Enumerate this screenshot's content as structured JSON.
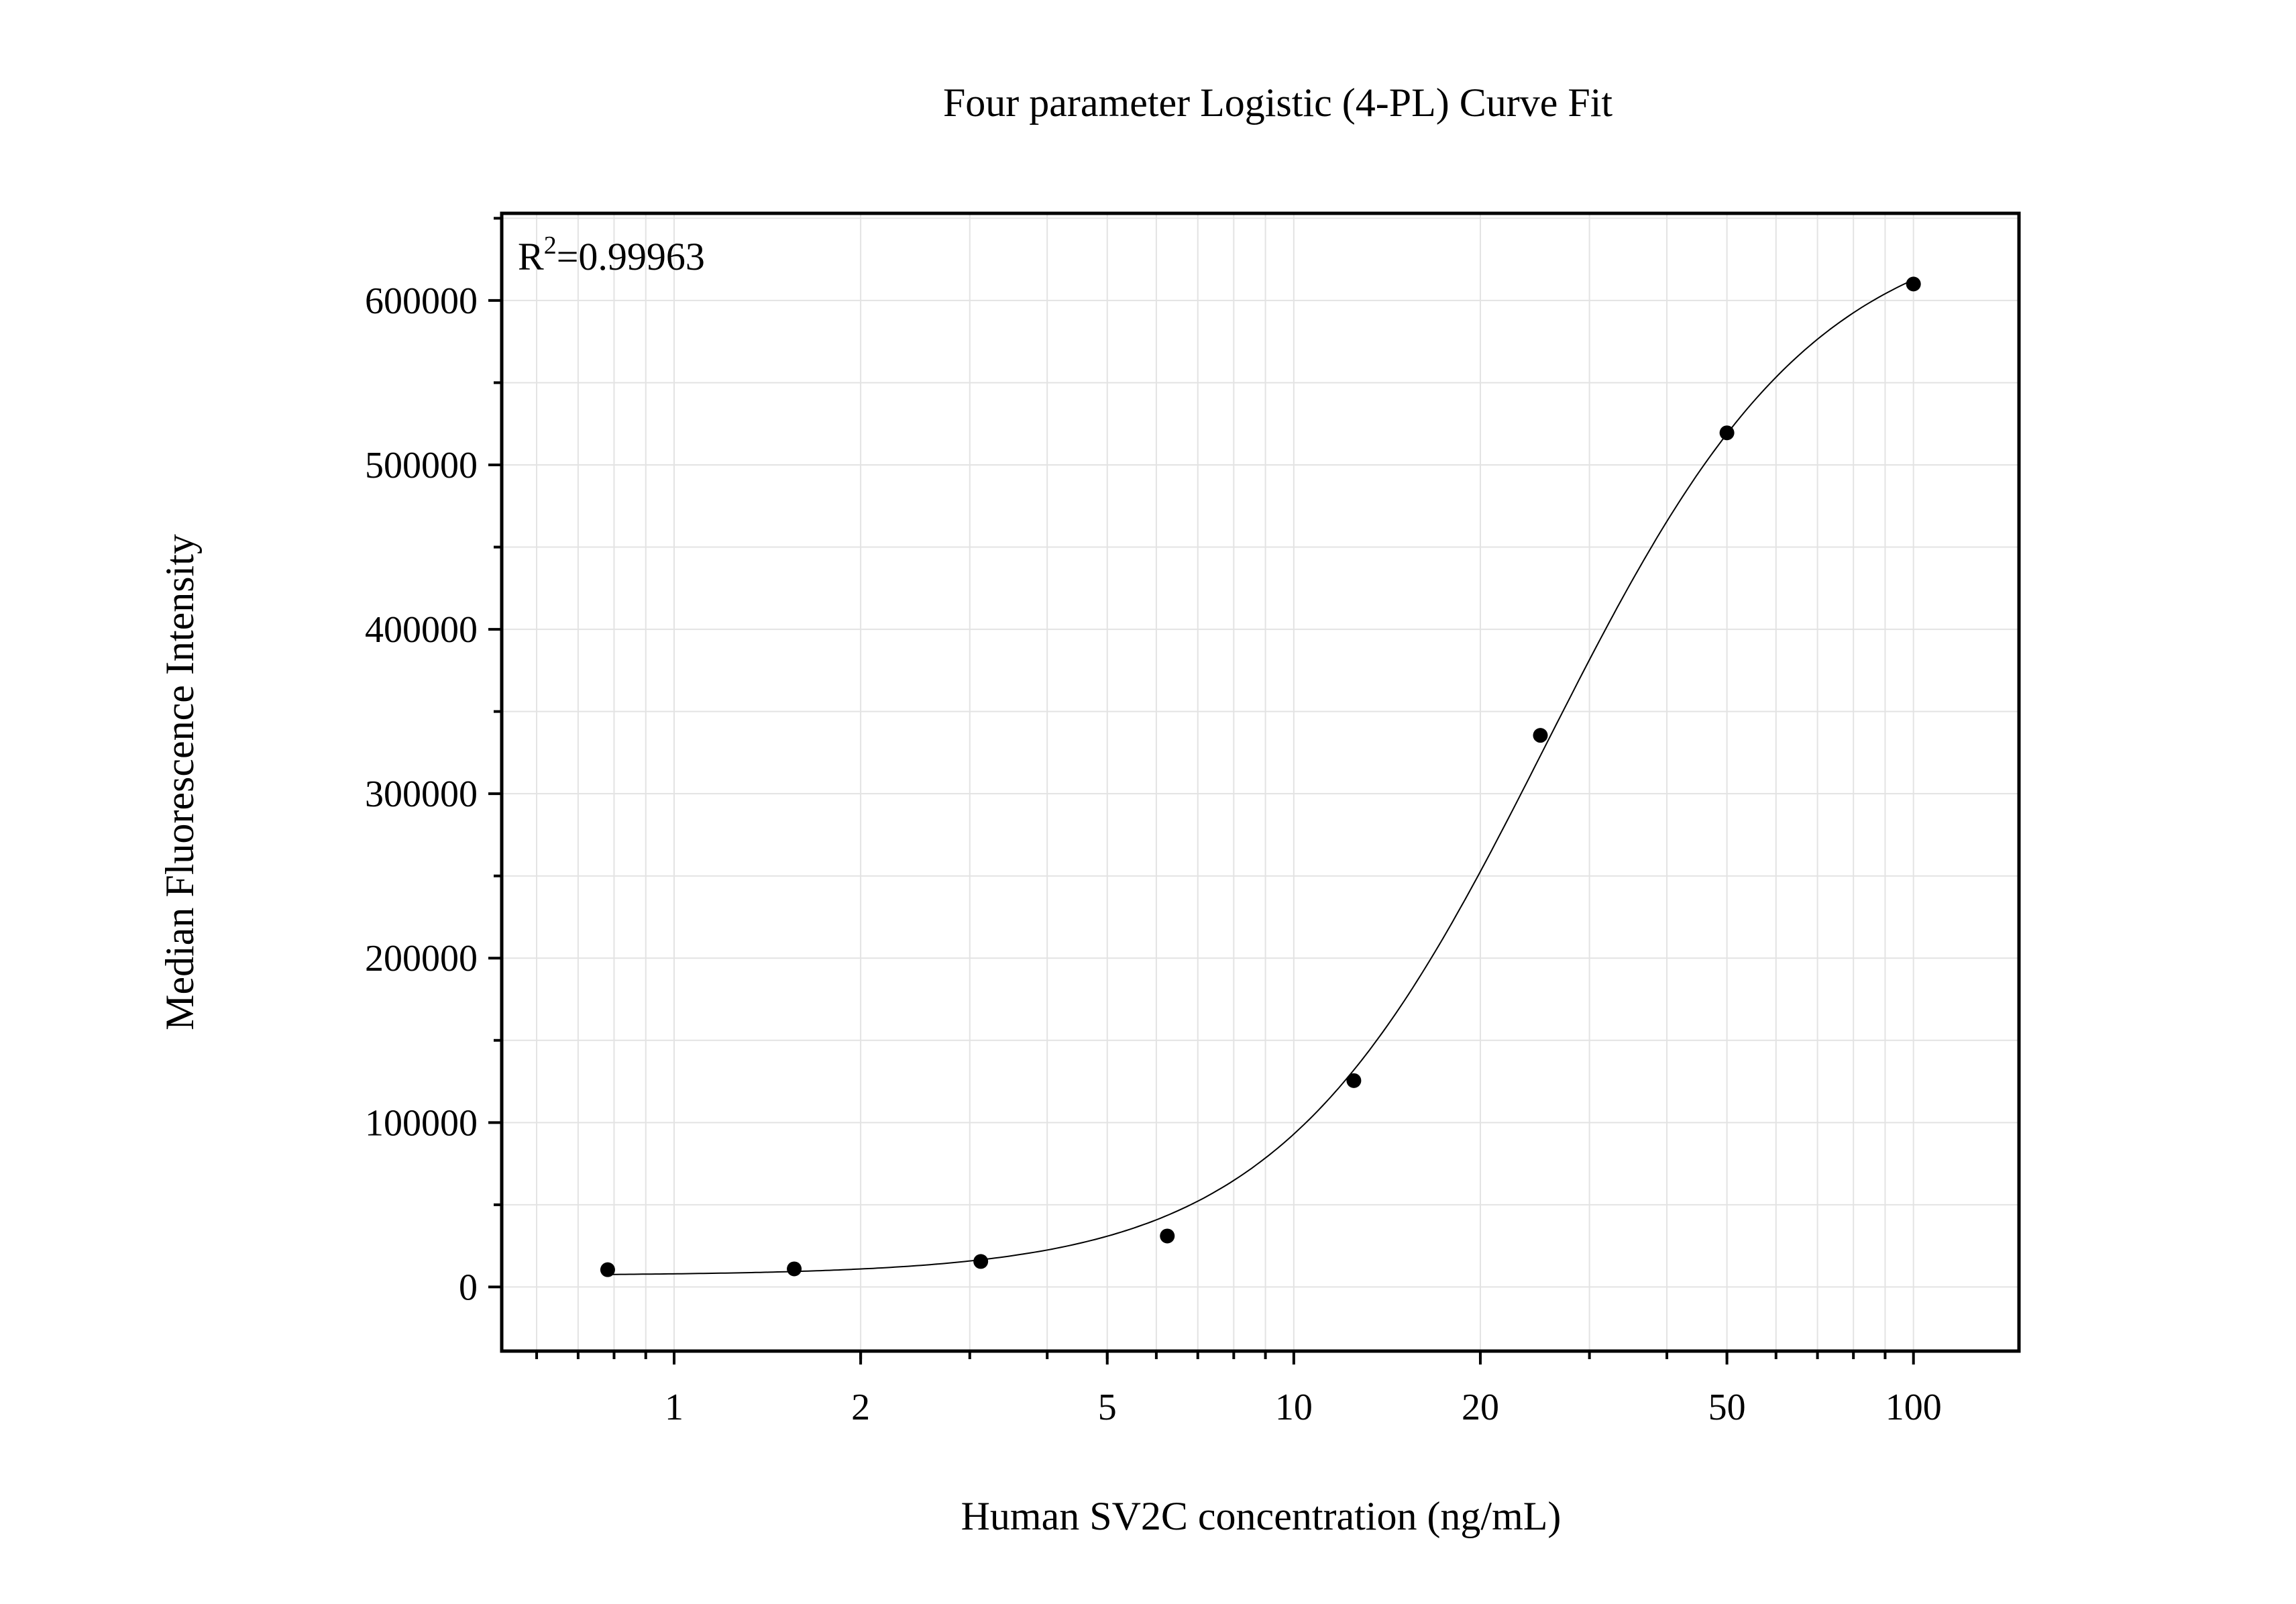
{
  "chart_data": {
    "type": "scatter",
    "title": "Four parameter Logistic (4-PL) Curve Fit",
    "xlabel": "Human SV2C concentration (ng/mL)",
    "ylabel": "Median Fluorescence Intensity",
    "x_scale": "log",
    "xlim": [
      0.527,
      148
    ],
    "ylim": [
      -39000,
      653000
    ],
    "x_ticks": [
      1,
      2,
      5,
      10,
      20,
      50,
      100
    ],
    "x_tick_labels": [
      "1",
      "2",
      "5",
      "10",
      "20",
      "50",
      "100"
    ],
    "y_ticks": [
      0,
      100000,
      200000,
      300000,
      400000,
      500000,
      600000
    ],
    "y_tick_labels": [
      "0",
      "100000",
      "200000",
      "300000",
      "400000",
      "500000",
      "600000"
    ],
    "grid": true,
    "annotation": {
      "base": "R",
      "sup": "2",
      "rest": "=0.99963"
    },
    "points": {
      "x": [
        0.78125,
        1.5625,
        3.125,
        6.25,
        12.5,
        25,
        50,
        100
      ],
      "y": [
        10500,
        11000,
        15500,
        31000,
        125500,
        335500,
        519500,
        610000
      ]
    },
    "fit": {
      "model": "4PL",
      "A": 7000,
      "B": 2.0,
      "C": 25.5,
      "D": 652000
    },
    "colors": {
      "points": "#000000",
      "curve": "#000000",
      "grid": "#e3e3e3",
      "axis": "#000000"
    }
  }
}
